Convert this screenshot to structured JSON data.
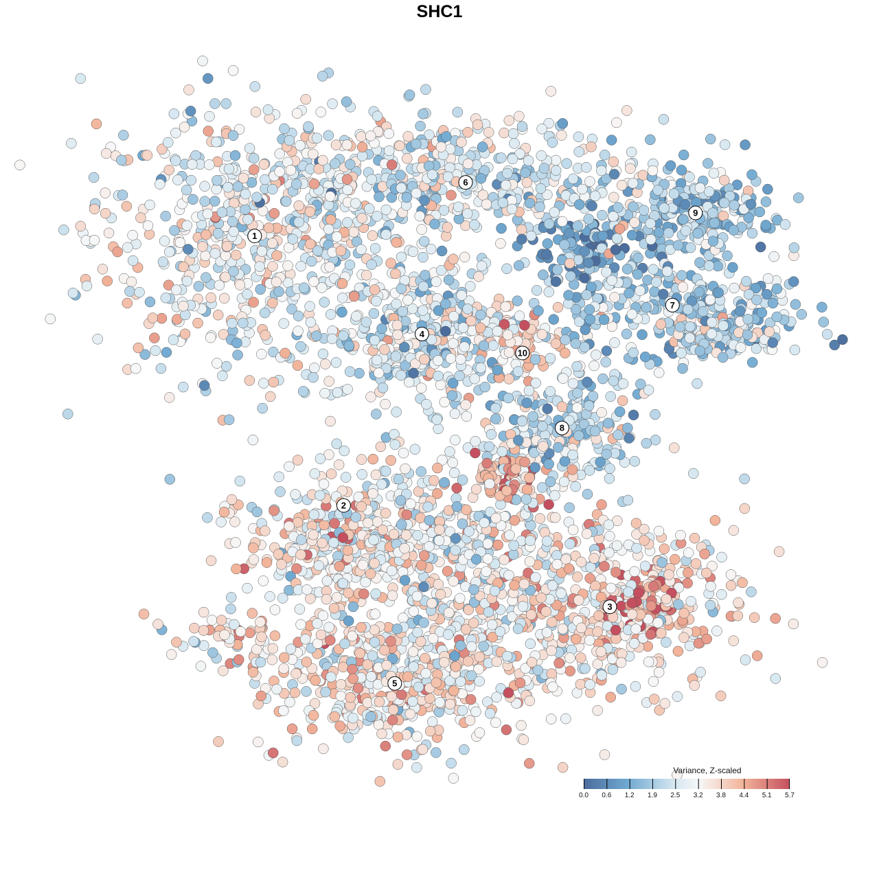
{
  "chart_data": {
    "type": "scatter",
    "title": "SHC1",
    "xlabel": "",
    "ylabel": "",
    "xlim": [
      -40,
      40
    ],
    "ylim": [
      -40,
      40
    ],
    "grid": false,
    "color_variable": "Variance, Z-scaled",
    "color_range": [
      0.0,
      5.7
    ],
    "legend_ticks": [
      "0.0",
      "0.6",
      "1.2",
      "1.9",
      "2.5",
      "3.2",
      "3.8",
      "4.4",
      "5.1",
      "5.7"
    ],
    "legend_placement": "bottom-right",
    "colors": {
      "low": "#4b6c9c",
      "mid": "#f7f7f7",
      "high": "#c4505f"
    },
    "clusters": [
      {
        "label": "1",
        "center": [
          -24.1,
          24.7
        ],
        "spread": [
          10,
          8.5
        ],
        "mean": 2.9,
        "n": 650
      },
      {
        "label": "6",
        "center": [
          1.5,
          31.2
        ],
        "spread": [
          12,
          3.8
        ],
        "mean": 2.6,
        "n": 450
      },
      {
        "label": "4",
        "center": [
          -3.8,
          12.8
        ],
        "spread": [
          5.5,
          4.5
        ],
        "mean": 2.6,
        "n": 300
      },
      {
        "label": "9",
        "center": [
          29.4,
          27.5
        ],
        "spread": [
          5,
          2.5
        ],
        "mean": 1.7,
        "n": 200
      },
      {
        "label": "7",
        "center": [
          26.6,
          16.3
        ],
        "spread": [
          8.5,
          3.5
        ],
        "mean": 2.0,
        "n": 320
      },
      {
        "label": "10",
        "center": [
          8.4,
          10.5
        ],
        "spread": [
          2,
          2
        ],
        "mean": 3.6,
        "n": 50
      },
      {
        "label": "8",
        "center": [
          13.2,
          1.4
        ],
        "spread": [
          5,
          3.2
        ],
        "mean": 2.2,
        "n": 220
      },
      {
        "label": "2",
        "center": [
          -13.3,
          -12.4
        ],
        "spread": [
          6,
          3.2
        ],
        "mean": 3.4,
        "n": 260
      },
      {
        "label": "3",
        "center": [
          19,
          -20.3
        ],
        "spread": [
          8.5,
          5
        ],
        "mean": 3.5,
        "n": 400
      },
      {
        "label": "5",
        "center": [
          -7.1,
          -29.6
        ],
        "spread": [
          9,
          4
        ],
        "mean": 3.5,
        "n": 380
      }
    ],
    "extra_groups": [
      {
        "center": [
          -1,
          -15
        ],
        "spread": [
          11,
          8.5
        ],
        "mean": 3.0,
        "n": 700
      },
      {
        "center": [
          6.5,
          -4.5
        ],
        "spread": [
          2.2,
          1.5
        ],
        "mean": 4.8,
        "n": 60
      },
      {
        "center": [
          -26,
          -24
        ],
        "spread": [
          4,
          1.5
        ],
        "mean": 3.6,
        "n": 50
      },
      {
        "center": [
          15.5,
          23.5
        ],
        "spread": [
          3.5,
          2
        ],
        "mean": 1.0,
        "n": 90
      },
      {
        "center": [
          22.5,
          -19.5
        ],
        "spread": [
          1.8,
          1.8
        ],
        "mean": 5.3,
        "n": 45
      },
      {
        "center": [
          33,
          12.5
        ],
        "spread": [
          3.5,
          1.2
        ],
        "mean": 2.7,
        "n": 80
      },
      {
        "center": [
          5,
          14
        ],
        "spread": [
          3.5,
          1.2
        ],
        "mean": 4.0,
        "n": 50
      }
    ],
    "cluster_label_positions": {
      "1": [
        -24.1,
        24.7
      ],
      "6": [
        1.5,
        31.2
      ],
      "4": [
        -3.8,
        12.8
      ],
      "9": [
        29.4,
        27.5
      ],
      "7": [
        26.6,
        16.3
      ],
      "10": [
        8.4,
        10.5
      ],
      "8": [
        13.2,
        1.4
      ],
      "2": [
        -13.3,
        -8
      ],
      "3": [
        19,
        -20.3
      ],
      "5": [
        -7.1,
        -29.6
      ]
    }
  }
}
